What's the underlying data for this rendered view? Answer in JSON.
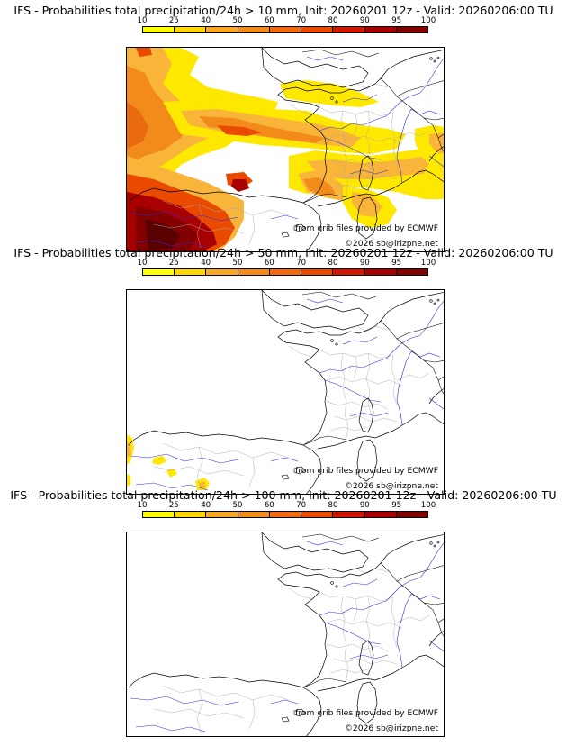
{
  "legend_ticks": [
    "10",
    "25",
    "40",
    "50",
    "60",
    "70",
    "80",
    "90",
    "95",
    "100"
  ],
  "legend_colors": [
    "#ffff00",
    "#ffd700",
    "#f9a825",
    "#f38b1b",
    "#f06a0d",
    "#ea4a00",
    "#d01800",
    "#a80000",
    "#820000",
    "#5a0000"
  ],
  "panels": [
    {
      "title": "IFS - Probabilities total precipitation/24h > 10 mm, Init: 20260201 12z - Valid: 20260206:00 TU",
      "source_note": "from grib files provided by ECMWF",
      "copyright": "©2026 sb@irizpne.net"
    },
    {
      "title": "IFS - Probabilities total precipitation/24h > 50 mm, Init: 20260201 12z - Valid: 20260206:00 TU",
      "source_note": "from grib files provided by ECMWF",
      "copyright": "©2026 sb@irizpne.net"
    },
    {
      "title": "IFS - Probabilities total precipitation/24h > 100 mm, Init: 20260201 12z - Valid: 20260206:00 TU",
      "source_note": "from grib files provided by ECMWF",
      "copyright": "©2026 sb@irizpne.net"
    }
  ]
}
